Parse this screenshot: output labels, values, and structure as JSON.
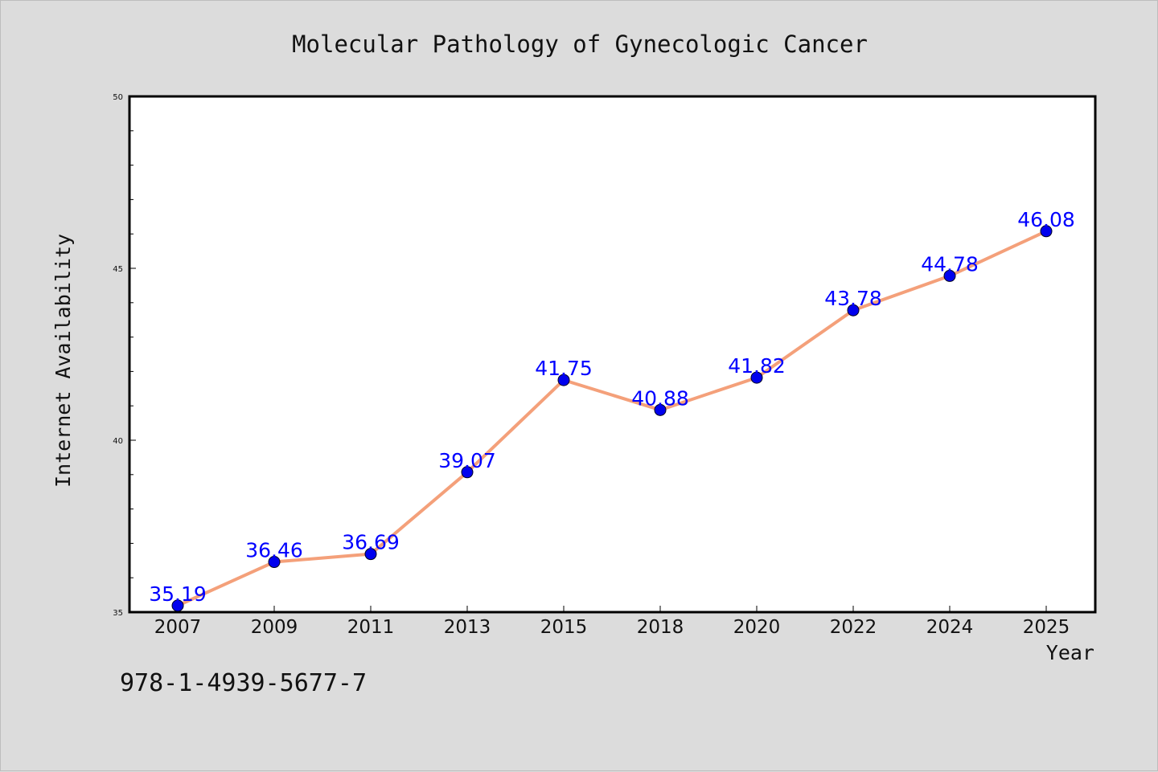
{
  "chart_data": {
    "type": "line",
    "title": "Molecular Pathology of Gynecologic Cancer",
    "xlabel": "Year",
    "ylabel": "Internet Availability",
    "categories": [
      "2007",
      "2009",
      "2011",
      "2013",
      "2015",
      "2018",
      "2020",
      "2022",
      "2024",
      "2025"
    ],
    "series": [
      {
        "values": [
          35.19,
          36.46,
          36.69,
          39.07,
          41.75,
          40.88,
          41.82,
          43.78,
          44.78,
          46.08
        ],
        "data_labels": [
          "35.19",
          "36.46",
          "36.69",
          "39.07",
          "41.75",
          "40.88",
          "41.82",
          "43.78",
          "44.78",
          "46.08"
        ],
        "line_color": "#f4a07a",
        "marker_color": "#0000ee",
        "label_color": "#0000ff"
      }
    ],
    "ylim": [
      35,
      50
    ],
    "yticks": [
      "35",
      "40",
      "45",
      "50"
    ],
    "grid": false,
    "legend": "none"
  },
  "footer": {
    "isbn": "978-1-4939-5677-7"
  }
}
